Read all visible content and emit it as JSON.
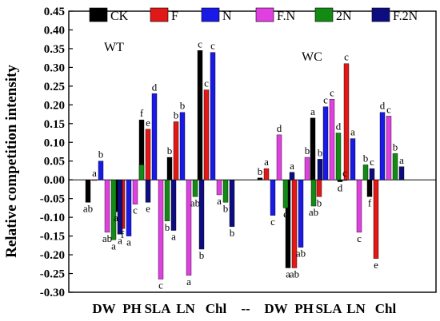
{
  "chart_data": {
    "type": "bar",
    "ylabel": "Relative competition intensity",
    "ylim": [
      -0.3,
      0.45
    ],
    "yticks": [
      0.45,
      0.4,
      0.35,
      0.3,
      0.25,
      0.2,
      0.15,
      0.1,
      0.05,
      0.0,
      -0.05,
      -0.1,
      -0.15,
      -0.2,
      -0.25,
      -0.3
    ],
    "ytick_labels": [
      "0.45",
      "0.40",
      "0.35",
      "0.30",
      "0.25",
      "0.20",
      "0.15",
      "0.10",
      "0.05",
      "0.00",
      "-0.05",
      "-0.10",
      "-0.15",
      "-0.20",
      "-0.25",
      "-0.30"
    ],
    "categories": [
      "DW",
      "PH",
      "SLA",
      "LN",
      "Chl",
      "--",
      "DW",
      "PH",
      "SLA",
      "LN",
      "Chl"
    ],
    "group_labels": [
      "WT",
      "WC"
    ],
    "legend_position": "top",
    "series": [
      {
        "name": "CK",
        "color": "#000000",
        "values": [
          -0.06,
          -0.085,
          0.16,
          0.06,
          0.345,
          null,
          0.005,
          -0.235,
          0.165,
          -0.005,
          -0.045
        ]
      },
      {
        "name": "F",
        "color": "#e01818",
        "values": [
          0.0,
          -0.13,
          0.135,
          0.155,
          0.24,
          null,
          0.03,
          -0.235,
          -0.045,
          0.31,
          -0.21
        ]
      },
      {
        "name": "N",
        "color": "#1a1ae6",
        "values": [
          0.05,
          -0.15,
          0.23,
          0.18,
          0.34,
          null,
          -0.095,
          -0.18,
          0.195,
          0.11,
          0.18
        ]
      },
      {
        "name": "F.N",
        "color": "#e040e0",
        "values": [
          -0.14,
          -0.065,
          -0.265,
          -0.255,
          -0.04,
          null,
          0.12,
          0.06,
          0.215,
          -0.14,
          0.17
        ]
      },
      {
        "name": "2N",
        "color": "#138a13",
        "values": [
          -0.16,
          0.04,
          -0.11,
          -0.045,
          -0.06,
          null,
          -0.075,
          -0.07,
          0.125,
          0.04,
          0.07
        ]
      },
      {
        "name": "F.2N",
        "color": "#0d0d80",
        "values": [
          -0.145,
          -0.06,
          -0.135,
          -0.185,
          -0.125,
          null,
          0.02,
          0.055,
          0.0,
          0.03,
          0.035
        ]
      }
    ],
    "letters": {
      "CK": [
        "ab",
        "a",
        "f",
        "b",
        "c",
        "",
        "b",
        "a",
        "a",
        "d",
        "f"
      ],
      "F": [
        "a",
        "f",
        "e",
        "b",
        "c",
        "",
        "a",
        "ab",
        "b",
        "c",
        "e"
      ],
      "N": [
        "b",
        "a",
        "d",
        "b",
        "c",
        "",
        "c",
        "ab",
        "c",
        "a",
        "d"
      ],
      "F.N": [
        "ab",
        "c",
        "c",
        "a",
        "a",
        "",
        "d",
        "b",
        "c",
        "c",
        "c"
      ],
      "2N": [
        "a",
        "d",
        "b",
        "ab",
        "b",
        "",
        "e",
        "ab",
        "d",
        "b",
        "b"
      ],
      "F.2N": [
        "a",
        "e",
        "a",
        "b",
        "b",
        "",
        "a",
        "b",
        "c",
        "c",
        "a"
      ]
    }
  }
}
